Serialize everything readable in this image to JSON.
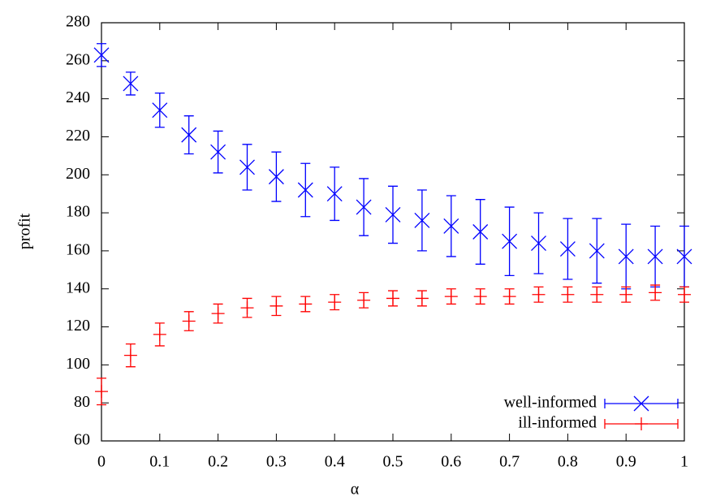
{
  "chart_data": {
    "type": "errorbar",
    "x_label": "α",
    "y_label": "profit",
    "x": [
      0,
      0.05,
      0.1,
      0.15,
      0.2,
      0.25,
      0.3,
      0.35,
      0.4,
      0.45,
      0.5,
      0.55,
      0.6,
      0.65,
      0.7,
      0.75,
      0.8,
      0.85,
      0.9,
      0.95,
      1
    ],
    "series": [
      {
        "name": "well-informed",
        "color": "#0000ff",
        "marker": "x",
        "values": [
          263,
          248,
          234,
          221,
          212,
          204,
          199,
          192,
          190,
          183,
          179,
          176,
          173,
          170,
          165,
          164,
          161,
          160,
          157,
          157,
          157
        ],
        "errors": [
          6,
          6,
          9,
          10,
          11,
          12,
          13,
          14,
          14,
          15,
          15,
          16,
          16,
          17,
          18,
          16,
          16,
          17,
          17,
          16,
          16
        ]
      },
      {
        "name": "ill-informed",
        "color": "#ff0000",
        "marker": "+",
        "values": [
          86,
          105,
          116,
          123,
          127,
          130,
          131,
          132,
          133,
          134,
          135,
          135,
          136,
          136,
          136,
          137,
          137,
          137,
          137,
          138,
          137
        ],
        "errors": [
          7,
          6,
          6,
          5,
          5,
          5,
          5,
          4,
          4,
          4,
          4,
          4,
          4,
          4,
          4,
          4,
          4,
          4,
          4,
          4,
          4
        ]
      }
    ],
    "xlim": [
      0,
      1
    ],
    "xticks": [
      0,
      0.1,
      0.2,
      0.3,
      0.4,
      0.5,
      0.6,
      0.7,
      0.8,
      0.9,
      1
    ],
    "ylim": [
      60,
      280
    ],
    "yticks": [
      60,
      80,
      100,
      120,
      140,
      160,
      180,
      200,
      220,
      240,
      260,
      280
    ],
    "legend": "bottom-right"
  }
}
